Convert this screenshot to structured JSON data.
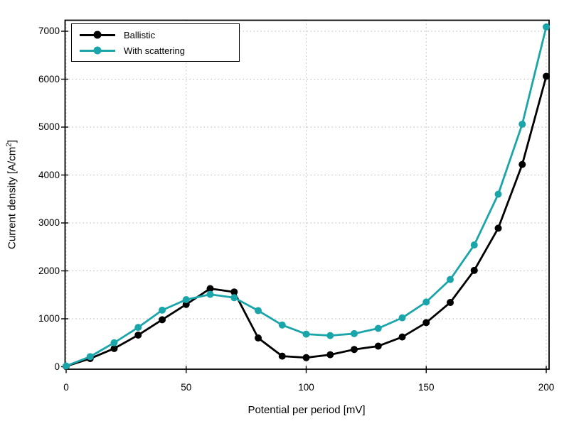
{
  "chart_data": {
    "type": "line",
    "title": "",
    "xlabel": "Potential per period [mV]",
    "ylabel": "Current density [A/cm²]",
    "ylabel_base": "Current density [A/cm",
    "ylabel_sup": "2",
    "ylabel_close": "]",
    "x": [
      0,
      10,
      20,
      30,
      40,
      50,
      60,
      70,
      80,
      90,
      100,
      110,
      120,
      130,
      140,
      150,
      160,
      170,
      180,
      190,
      200
    ],
    "series": [
      {
        "name": "Ballistic",
        "color": "#000000",
        "marker": "circle",
        "values": [
          10,
          170,
          380,
          660,
          980,
          1300,
          1630,
          1560,
          600,
          220,
          190,
          250,
          360,
          430,
          620,
          920,
          1340,
          2010,
          2890,
          4220,
          6060
        ]
      },
      {
        "name": "With scattering",
        "color": "#1aa5aa",
        "marker": "circle",
        "values": [
          15,
          210,
          500,
          820,
          1180,
          1400,
          1510,
          1440,
          1170,
          870,
          680,
          650,
          690,
          800,
          1020,
          1350,
          1820,
          2540,
          3600,
          5060,
          7090
        ]
      }
    ],
    "xlim": [
      0,
      200
    ],
    "ylim": [
      0,
      7000
    ],
    "x_ticks": [
      0,
      50,
      100,
      150,
      200
    ],
    "y_ticks": [
      0,
      1000,
      2000,
      3000,
      4000,
      5000,
      6000,
      7000
    ],
    "grid": "dotted",
    "legend_position": "top-left"
  },
  "legend": {
    "items": [
      {
        "label": "Ballistic",
        "color": "#000000"
      },
      {
        "label": "With scattering",
        "color": "#1aa5aa"
      }
    ]
  },
  "colors": {
    "background": "#ffffff",
    "frame": "#000000",
    "grid": "#aaaaaa",
    "text": "#000000"
  }
}
